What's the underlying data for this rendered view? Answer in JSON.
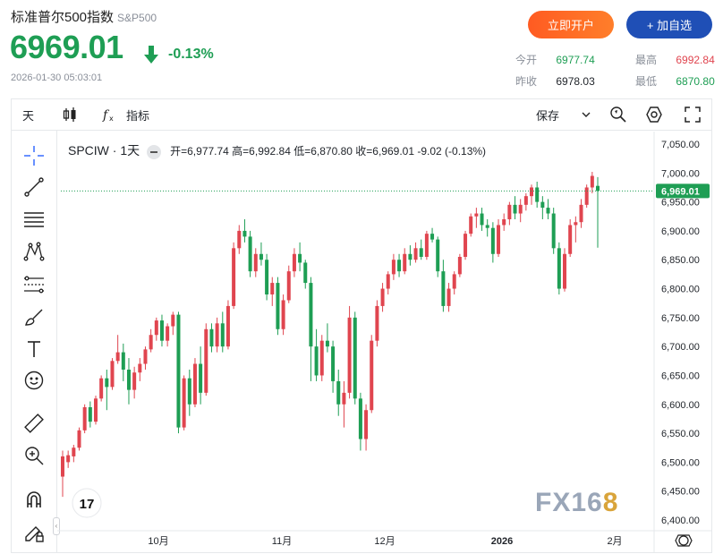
{
  "header": {
    "title": "标准普尔500指数",
    "symbol": "S&P500",
    "price": "6969.01",
    "change_pct": "-0.13%",
    "timestamp": "2026-01-30 05:03:01",
    "open_btn": "立即开户",
    "add_btn": "+ 加自选"
  },
  "stats": {
    "today_open_label": "今开",
    "today_open": "6977.74",
    "prev_close_label": "昨收",
    "prev_close": "6978.03",
    "high_label": "最高",
    "high": "6992.84",
    "low_label": "最低",
    "low": "6870.80"
  },
  "toolbar": {
    "interval": "天",
    "indicators": "指标",
    "save": "保存"
  },
  "legend": {
    "symbol": "SPCIW · 1天",
    "ohlc": "开=6,977.74  高=6,992.84  低=6,870.80  收=6,969.01  -9.02 (-0.13%)"
  },
  "watermark": {
    "main": "FX16",
    "accent": "8"
  },
  "colors": {
    "up": "#e0454f",
    "down": "#1e9e54",
    "accent_open": "#ff6a24",
    "accent_add": "#1f4fb6"
  },
  "icons": [
    "crosshair-icon",
    "trendline-icon",
    "hlines-icon",
    "pattern-icon",
    "fib-icon",
    "brush-icon",
    "text-icon",
    "emoji-icon",
    "ruler-icon",
    "zoom-in-icon",
    "magnet-icon",
    "lock-pencil-icon",
    "tradingview-logo",
    "settings-icon",
    "fullscreen-icon",
    "compare-icon",
    "candles-icon"
  ],
  "chart_data": {
    "type": "candlestick",
    "title": "SPCIW · 1天",
    "y_ticks": [
      "7,050.00",
      "7,000.00",
      "6,950.00",
      "6,900.00",
      "6,850.00",
      "6,800.00",
      "6,750.00",
      "6,700.00",
      "6,650.00",
      "6,600.00",
      "6,550.00",
      "6,500.00",
      "6,450.00",
      "6,400.00"
    ],
    "ylim": [
      6400,
      7065
    ],
    "x_labels": [
      "10月",
      "11月",
      "12月",
      "2026",
      "2月"
    ],
    "last_price_label": "6,969.01",
    "last_price": 6969.01,
    "candles": [
      [
        6475,
        6520,
        6440,
        6510
      ],
      [
        6500,
        6520,
        6490,
        6512
      ],
      [
        6510,
        6530,
        6500,
        6525
      ],
      [
        6525,
        6560,
        6520,
        6555
      ],
      [
        6555,
        6600,
        6550,
        6595
      ],
      [
        6595,
        6605,
        6560,
        6570
      ],
      [
        6570,
        6615,
        6565,
        6610
      ],
      [
        6610,
        6650,
        6605,
        6645
      ],
      [
        6645,
        6660,
        6590,
        6630
      ],
      [
        6630,
        6680,
        6625,
        6675
      ],
      [
        6675,
        6720,
        6670,
        6690
      ],
      [
        6690,
        6705,
        6640,
        6660
      ],
      [
        6660,
        6680,
        6600,
        6625
      ],
      [
        6625,
        6665,
        6610,
        6655
      ],
      [
        6655,
        6680,
        6640,
        6670
      ],
      [
        6670,
        6700,
        6660,
        6695
      ],
      [
        6695,
        6730,
        6690,
        6720
      ],
      [
        6720,
        6750,
        6710,
        6745
      ],
      [
        6745,
        6755,
        6700,
        6710
      ],
      [
        6710,
        6740,
        6700,
        6735
      ],
      [
        6735,
        6760,
        6720,
        6755
      ],
      [
        6755,
        6760,
        6550,
        6560
      ],
      [
        6560,
        6650,
        6555,
        6645
      ],
      [
        6645,
        6660,
        6580,
        6600
      ],
      [
        6600,
        6680,
        6595,
        6670
      ],
      [
        6670,
        6700,
        6600,
        6620
      ],
      [
        6620,
        6740,
        6615,
        6730
      ],
      [
        6730,
        6740,
        6690,
        6700
      ],
      [
        6700,
        6750,
        6690,
        6740
      ],
      [
        6740,
        6760,
        6690,
        6700
      ],
      [
        6700,
        6780,
        6695,
        6770
      ],
      [
        6770,
        6880,
        6765,
        6870
      ],
      [
        6870,
        6910,
        6860,
        6900
      ],
      [
        6900,
        6920,
        6880,
        6890
      ],
      [
        6890,
        6900,
        6820,
        6830
      ],
      [
        6830,
        6870,
        6820,
        6860
      ],
      [
        6860,
        6880,
        6840,
        6850
      ],
      [
        6850,
        6860,
        6780,
        6790
      ],
      [
        6790,
        6820,
        6770,
        6810
      ],
      [
        6810,
        6820,
        6720,
        6730
      ],
      [
        6730,
        6790,
        6720,
        6780
      ],
      [
        6780,
        6840,
        6775,
        6830
      ],
      [
        6830,
        6870,
        6820,
        6860
      ],
      [
        6860,
        6880,
        6830,
        6845
      ],
      [
        6845,
        6850,
        6800,
        6810
      ],
      [
        6810,
        6820,
        6640,
        6700
      ],
      [
        6700,
        6730,
        6640,
        6650
      ],
      [
        6650,
        6720,
        6640,
        6710
      ],
      [
        6710,
        6740,
        6690,
        6700
      ],
      [
        6700,
        6710,
        6620,
        6640
      ],
      [
        6640,
        6660,
        6580,
        6600
      ],
      [
        6600,
        6640,
        6560,
        6620
      ],
      [
        6620,
        6770,
        6610,
        6750
      ],
      [
        6750,
        6760,
        6600,
        6610
      ],
      [
        6610,
        6620,
        6520,
        6540
      ],
      [
        6540,
        6600,
        6520,
        6590
      ],
      [
        6590,
        6720,
        6585,
        6710
      ],
      [
        6710,
        6780,
        6700,
        6770
      ],
      [
        6770,
        6810,
        6760,
        6800
      ],
      [
        6800,
        6830,
        6790,
        6825
      ],
      [
        6825,
        6860,
        6815,
        6850
      ],
      [
        6850,
        6860,
        6820,
        6830
      ],
      [
        6830,
        6870,
        6825,
        6860
      ],
      [
        6860,
        6875,
        6840,
        6850
      ],
      [
        6850,
        6880,
        6845,
        6870
      ],
      [
        6870,
        6885,
        6850,
        6855
      ],
      [
        6855,
        6900,
        6850,
        6895
      ],
      [
        6895,
        6905,
        6880,
        6885
      ],
      [
        6885,
        6890,
        6820,
        6830
      ],
      [
        6830,
        6850,
        6760,
        6770
      ],
      [
        6770,
        6810,
        6760,
        6800
      ],
      [
        6800,
        6830,
        6790,
        6825
      ],
      [
        6825,
        6860,
        6820,
        6855
      ],
      [
        6855,
        6900,
        6850,
        6895
      ],
      [
        6895,
        6930,
        6890,
        6925
      ],
      [
        6925,
        6940,
        6905,
        6930
      ],
      [
        6930,
        6940,
        6900,
        6910
      ],
      [
        6910,
        6920,
        6890,
        6905
      ],
      [
        6905,
        6915,
        6845,
        6860
      ],
      [
        6860,
        6920,
        6855,
        6910
      ],
      [
        6910,
        6930,
        6900,
        6920
      ],
      [
        6920,
        6950,
        6910,
        6945
      ],
      [
        6945,
        6960,
        6920,
        6930
      ],
      [
        6930,
        6955,
        6915,
        6945
      ],
      [
        6945,
        6965,
        6935,
        6960
      ],
      [
        6960,
        6980,
        6945,
        6975
      ],
      [
        6975,
        6985,
        6940,
        6950
      ],
      [
        6950,
        6960,
        6920,
        6940
      ],
      [
        6940,
        6955,
        6920,
        6930
      ],
      [
        6930,
        6940,
        6860,
        6870
      ],
      [
        6870,
        6880,
        6790,
        6800
      ],
      [
        6800,
        6870,
        6795,
        6860
      ],
      [
        6860,
        6920,
        6855,
        6910
      ],
      [
        6910,
        6925,
        6880,
        6915
      ],
      [
        6915,
        6955,
        6905,
        6945
      ],
      [
        6945,
        6980,
        6940,
        6975
      ],
      [
        6975,
        7002,
        6965,
        6995
      ],
      [
        6977.74,
        6992.84,
        6870.8,
        6969.01
      ]
    ]
  }
}
